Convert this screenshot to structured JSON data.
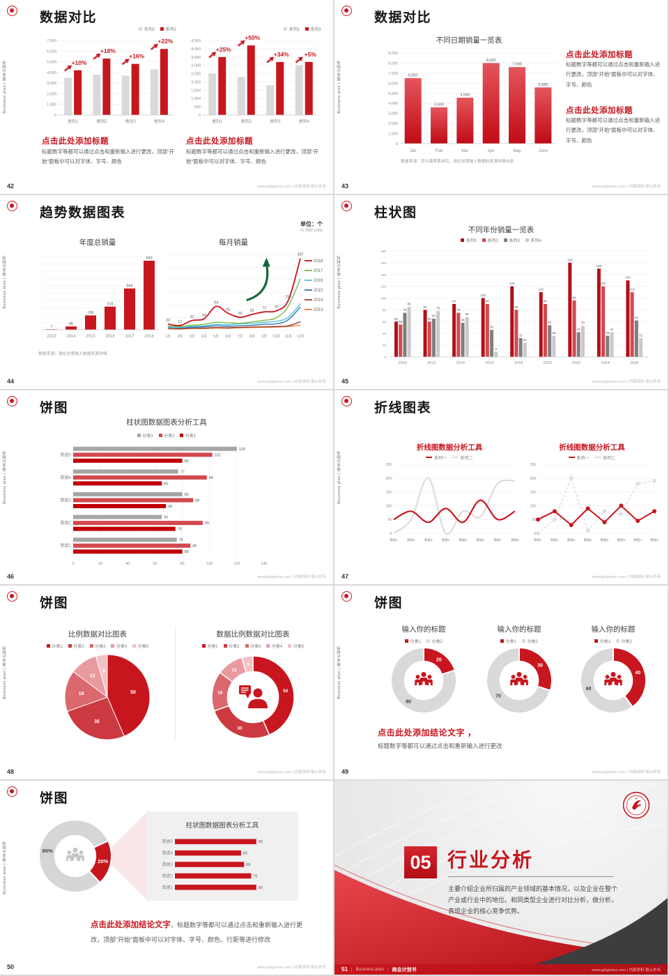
{
  "common": {
    "footer_right": "www.pptgenius.com | 内部资料 禁止外传",
    "sidebar_text": "Business plan | 商业计划书",
    "brand_red": "#C8161E"
  },
  "slides": {
    "s42": {
      "page": "42",
      "title": "数据对比",
      "left_block": {
        "heading": "点击此处添加标题",
        "body": "标题数字等都可以通过点击和重新输入进行更改，顶部“开始”面板中可以对字体、字号、颜色"
      },
      "right_block": {
        "heading": "点击此处添加标题",
        "body": "标题数字等都可以通过点击和重新输入进行更改，顶部“开始”面板中可以对字体、字号、颜色"
      }
    },
    "s43": {
      "page": "43",
      "title": "数据对比",
      "chart_title": "不同日期销量一览表",
      "note": "数据来源：尼尔森零售研究，请在这里输入数据的来源详情信息",
      "block1": {
        "heading": "点击此处添加标题",
        "body": "标题数字等都可以通过点击和重新输入进行更改，顶部“开始”面板中可以对字体、字号、颜色"
      },
      "block2": {
        "heading": "点击此处添加标题",
        "body": "标题数字等都可以通过点击和重新输入进行更改，顶部“开始”面板中可以对字体、字号、颜色"
      }
    },
    "s44": {
      "page": "44",
      "title": "趋势数据图表",
      "unit_cn": "单位：个",
      "unit_en": "in '000 units",
      "chart_title_left": "年度总销量",
      "chart_title_right": "每月销量",
      "note": "数据来源：请在这里输入数据来源详情"
    },
    "s45": {
      "page": "45",
      "title": "柱状图",
      "chart_title": "不同年份销量一览表"
    },
    "s46": {
      "page": "46",
      "title": "饼图",
      "chart_title": "柱状图数据图表分析工具"
    },
    "s47": {
      "page": "47",
      "title": "折线图表",
      "chart_title_left": "折线图数据分析工具",
      "chart_title_right": "折线图数据分析工具"
    },
    "s48": {
      "page": "48",
      "title": "饼图",
      "chart_title_left": "比例数据对比图表",
      "chart_title_right": "数据比例数据对比图表"
    },
    "s49": {
      "page": "49",
      "title": "饼图",
      "chart_titles": [
        "输入你的标题",
        "输入你的标题",
        "输入你的标题"
      ],
      "conclusion_heading": "点击此处添加结论文字 ，",
      "conclusion_body": "标题数字等都可以通过点击和重新输入进行更改"
    },
    "s50": {
      "page": "50",
      "title": "饼图",
      "panel_title": "柱状图数据图表分析工具",
      "conclusion_heading": "点击此处添加结论文字",
      "conclusion_body": "，标题数字等都可以通过点击和重新输入进行更改，顶部“开始”面板中可以对字体、字号、颜色、行距等进行修改"
    },
    "s51": {
      "page": "51",
      "number": "05",
      "title": "行业分析",
      "body": "主要介绍企业所归属的产业领域的基本情况，以及企业在整个产业或行业中的地位。和同类型企业进行对比分析，做分析，表现企业的核心竞争优势。",
      "footer_en": "Business plan",
      "footer_cn": "商业计划书"
    }
  },
  "chart_data": [
    {
      "id": "c42a",
      "type": "bar",
      "categories": [
        "类别1",
        "类别2",
        "类别3",
        "类别4"
      ],
      "series": [
        {
          "name": "系列1",
          "color": "#D9D9D9",
          "values": [
            3500,
            3800,
            3700,
            4300
          ]
        },
        {
          "name": "系列2",
          "color": "#C8161E",
          "values": [
            4200,
            5300,
            4800,
            6200
          ]
        }
      ],
      "ylim": [
        0,
        7000
      ],
      "ystep": 1000,
      "bw": 11,
      "bgap": 3,
      "ann": [
        "+10%",
        "+18%",
        "+16%",
        "+22%"
      ],
      "m": {
        "l": 26,
        "r": 4,
        "t": 12,
        "b": 13
      }
    },
    {
      "id": "c42b",
      "type": "bar",
      "categories": [
        "类别1",
        "类别2",
        "类别3",
        "类别4"
      ],
      "series": [
        {
          "name": "系列1",
          "color": "#D9D9D9",
          "values": [
            2500,
            2300,
            1800,
            3000
          ]
        },
        {
          "name": "系列2",
          "color": "#C8161E",
          "values": [
            3500,
            4200,
            3200,
            3200
          ]
        }
      ],
      "ylim": [
        0,
        4500
      ],
      "ystep": 500,
      "bw": 11,
      "bgap": 3,
      "ann": [
        "+25%",
        "+50%",
        "+34%",
        "+5%"
      ],
      "m": {
        "l": 26,
        "r": 4,
        "t": 12,
        "b": 13
      }
    },
    {
      "id": "c43",
      "type": "bar",
      "categories": [
        "Jan",
        "Feb",
        "Mar",
        "Apr",
        "May",
        "June"
      ],
      "series": [
        {
          "name": "销量",
          "gradient": [
            "#E4555C",
            "#C00B15"
          ],
          "values": [
            6500,
            3600,
            4560,
            8000,
            7600,
            5580
          ]
        }
      ],
      "ylim": [
        0,
        9000
      ],
      "ystep": 1000,
      "bw": 24,
      "vlabels": true,
      "m": {
        "l": 32,
        "r": 6,
        "t": 8,
        "b": 14
      }
    },
    {
      "id": "c44a",
      "type": "bar",
      "categories": [
        "2013",
        "2014",
        "2015",
        "2016",
        "2017",
        "2018"
      ],
      "series": [
        {
          "name": "年度总销量",
          "color": "#C8161E",
          "values": [
            7,
            45,
            196,
            316,
            564,
            943
          ]
        }
      ],
      "ylim": [
        0,
        1000
      ],
      "ystep": 100,
      "ylabels": false,
      "vlabels": true,
      "bw": 16,
      "m": {
        "l": 8,
        "r": 4,
        "t": 10,
        "b": 13
      }
    },
    {
      "id": "c44b",
      "type": "line",
      "x": [
        "1月",
        "2月",
        "3月",
        "4月",
        "5月",
        "6月",
        "7月",
        "8月",
        "9月",
        "10月",
        "11月",
        "12月"
      ],
      "series": [
        {
          "name": "2018",
          "color": "#C8161E",
          "w": 1.8,
          "labels": true,
          "values": [
            23,
            17,
            37,
            44,
            94,
            66,
            50,
            62,
            72,
            76,
            118,
            287
          ]
        },
        {
          "name": "2017",
          "color": "#7FBA42",
          "w": 1.4,
          "values": [
            15,
            13,
            18,
            22,
            30,
            28,
            26,
            32,
            38,
            48,
            95,
            205
          ]
        },
        {
          "name": "2016",
          "color": "#4EC3E0",
          "w": 1.4,
          "values": [
            12,
            10,
            14,
            16,
            22,
            20,
            24,
            26,
            30,
            34,
            50,
            105
          ]
        },
        {
          "name": "2015",
          "color": "#2E75B6",
          "w": 1.4,
          "values": [
            10,
            8,
            10,
            12,
            16,
            14,
            16,
            18,
            22,
            24,
            40,
            92
          ]
        },
        {
          "name": "2014",
          "color": "#9E3B2D",
          "w": 1.4,
          "values": [
            5,
            4,
            6,
            7,
            9,
            8,
            10,
            11,
            12,
            13,
            16,
            32
          ]
        },
        {
          "name": "2013",
          "color": "#ED7D31",
          "w": 1.4,
          "values": [
            4,
            3,
            5,
            5,
            7,
            6,
            8,
            9,
            10,
            11,
            13,
            18
          ]
        }
      ],
      "ylim": [
        0,
        300
      ],
      "ystep": 50,
      "ylabels": false,
      "smooth": true,
      "legend_right": true,
      "arrow": true,
      "m": {
        "l": 6,
        "r": 36,
        "t": 12,
        "b": 13
      },
      "xfs": 5
    },
    {
      "id": "c45",
      "type": "bar",
      "categories": [
        "2010",
        "2012",
        "2014",
        "2016",
        "2018",
        "2020",
        "2022",
        "2024",
        "2026"
      ],
      "series": [
        {
          "name": "系列1",
          "color": "#B40F17",
          "values": [
            60,
            80,
            90,
            100,
            120,
            110,
            160,
            150,
            130
          ]
        },
        {
          "name": "系列2",
          "color": "#D2494F",
          "values": [
            55,
            60,
            75,
            90,
            80,
            90,
            96,
            120,
            110
          ]
        },
        {
          "name": "系列3",
          "color": "#7F7F7F",
          "values": [
            75,
            65,
            58,
            46,
            32,
            54,
            42,
            36,
            62
          ]
        },
        {
          "name": "系列4",
          "color": "#C9C9C9",
          "values": [
            85,
            78,
            68,
            9,
            24,
            36,
            53,
            42,
            32
          ]
        }
      ],
      "ylim": [
        0,
        180
      ],
      "ystep": 20,
      "vlabels": true,
      "bw": 5,
      "bgap": 1.2,
      "fs": 4.5,
      "fs2": 5.5,
      "m": {
        "l": 22,
        "r": 4,
        "t": 8,
        "b": 12
      }
    },
    {
      "id": "c46",
      "type": "hbar",
      "categories": [
        "数据5",
        "数据4",
        "数据3",
        "数据2",
        "数据1"
      ],
      "series": [
        {
          "name": "分类3",
          "color": "#A6A6A6",
          "values": [
            120,
            77,
            80,
            65,
            76
          ]
        },
        {
          "name": "分类2",
          "color": "#D2494F",
          "values": [
            102,
            98,
            88,
            95,
            86
          ]
        },
        {
          "name": "分类1",
          "color": "#C00000",
          "values": [
            80,
            65,
            68,
            75,
            80
          ]
        }
      ],
      "xlim": [
        0,
        140
      ],
      "xstep": 20,
      "vlabels": true,
      "bh": 6,
      "bgap": 2.5,
      "m": {
        "l": 30,
        "r": 26,
        "t": 4,
        "b": 13
      }
    },
    {
      "id": "c47a",
      "type": "line",
      "x": [
        "数据1",
        "数据2",
        "数据3",
        "数据4",
        "数据5",
        "数据6",
        "数据7",
        "数据8"
      ],
      "series": [
        {
          "name": "系列一",
          "color": "#C8161E",
          "w": 2.2,
          "values": [
            50,
            80,
            40,
            90,
            40,
            120,
            50,
            80
          ]
        },
        {
          "name": "系列二",
          "color": "#DCDCDC",
          "w": 2.2,
          "values": [
            0,
            50,
            200,
            0,
            80,
            60,
            180,
            190
          ]
        }
      ],
      "ylim": [
        0,
        250
      ],
      "ystep": 50,
      "smooth": true,
      "m": {
        "l": 20,
        "r": 6,
        "t": 6,
        "b": 13
      },
      "xfs": 4.5,
      "legend_items": [
        {
          "label": "系列一",
          "color": "#C8161E",
          "shape": "line"
        },
        {
          "label": "系列二",
          "color": "#DCDCDC",
          "shape": "line"
        }
      ]
    },
    {
      "id": "c47b",
      "type": "line",
      "x": [
        "数据1",
        "数据2",
        "数据3",
        "数据4",
        "数据5",
        "数据6",
        "数据7",
        "数据8"
      ],
      "series": [
        {
          "name": "系列一",
          "color": "#C8161E",
          "w": 2,
          "markers": true,
          "values": [
            50,
            80,
            30,
            90,
            40,
            100,
            45,
            80
          ]
        },
        {
          "name": "系列二",
          "color": "#D9D9D9",
          "w": 1.5,
          "dash": "3 3",
          "markers": true,
          "mcolor": "#E0E0E0",
          "values": [
            0,
            50,
            200,
            10,
            80,
            70,
            180,
            190
          ]
        }
      ],
      "ylim": [
        0,
        250
      ],
      "ystep": 50,
      "m": {
        "l": 20,
        "r": 8,
        "t": 6,
        "b": 13
      },
      "xfs": 4.5,
      "legend_items": [
        {
          "label": "系列一",
          "color": "#C8161E",
          "shape": "line"
        },
        {
          "label": "系列二",
          "color": "#DCDCDC",
          "shape": "line"
        }
      ]
    },
    {
      "id": "c48a",
      "type": "pie",
      "values": [
        50,
        30,
        18,
        12,
        5
      ],
      "labels": [
        "50",
        "30",
        "18",
        "12",
        "5"
      ],
      "colors": [
        "#C8161E",
        "#CC3940",
        "#DA686D",
        "#E89A9E",
        "#F1C2C4"
      ],
      "lfs": 7,
      "stroke": 1,
      "legend_items": [
        {
          "label": "分类1",
          "color": "#C8161E"
        },
        {
          "label": "分类2",
          "color": "#CC3940"
        },
        {
          "label": "分类3",
          "color": "#DA686D"
        },
        {
          "label": "分类4",
          "color": "#E89A9E"
        },
        {
          "label": "分类5",
          "color": "#F1C2C4"
        }
      ]
    },
    {
      "id": "c48b",
      "type": "pie",
      "values": [
        50,
        30,
        18,
        12,
        5
      ],
      "labels": [
        "50",
        "30",
        "18",
        "12",
        "5"
      ],
      "colors": [
        "#C8161E",
        "#CC3940",
        "#DA686D",
        "#E89A9E",
        "#F1C2C4"
      ],
      "inner": 0.62,
      "icon": "person-chat",
      "lfs": 6.5,
      "stroke": 1.5,
      "legend_items": [
        {
          "label": "分类1",
          "color": "#C8161E"
        },
        {
          "label": "分类2",
          "color": "#CC3940"
        },
        {
          "label": "分类3",
          "color": "#DA686D"
        },
        {
          "label": "分类4",
          "color": "#E89A9E"
        },
        {
          "label": "分类5",
          "color": "#F1C2C4"
        }
      ]
    },
    {
      "id": "c49a",
      "type": "pie",
      "values": [
        20,
        80
      ],
      "labels": [
        "20",
        "80"
      ],
      "label_colors": [
        "#ffffff",
        "#404040"
      ],
      "colors": [
        "#C8161E",
        "#D9D9D9"
      ],
      "inner": 0.58,
      "icon": "people",
      "stroke": 2,
      "lfs": 7,
      "legend_items": [
        {
          "label": "分类1",
          "color": "#C8161E"
        },
        {
          "label": "分类2",
          "color": "#D9D9D9"
        }
      ]
    },
    {
      "id": "c49b",
      "type": "pie",
      "values": [
        30,
        70
      ],
      "labels": [
        "30",
        "70"
      ],
      "label_colors": [
        "#ffffff",
        "#404040"
      ],
      "colors": [
        "#C8161E",
        "#D9D9D9"
      ],
      "inner": 0.58,
      "icon": "people",
      "stroke": 2,
      "lfs": 7,
      "legend_items": [
        {
          "label": "分类1",
          "color": "#C8161E"
        },
        {
          "label": "分类2",
          "color": "#D9D9D9"
        }
      ]
    },
    {
      "id": "c49c",
      "type": "pie",
      "values": [
        40,
        60
      ],
      "labels": [
        "40",
        "60"
      ],
      "label_colors": [
        "#ffffff",
        "#404040"
      ],
      "colors": [
        "#C8161E",
        "#D9D9D9"
      ],
      "inner": 0.58,
      "icon": "people",
      "stroke": 2,
      "lfs": 7,
      "legend_items": [
        {
          "label": "分类1",
          "color": "#C8161E"
        },
        {
          "label": "分类2",
          "color": "#D9D9D9"
        }
      ]
    },
    {
      "id": "c50d",
      "type": "pie",
      "values": [
        20,
        80
      ],
      "labels": [
        "20%",
        "80%"
      ],
      "label_colors": [
        "#ffffff",
        "#404040"
      ],
      "colors": [
        "#C8161E",
        "#D6D6D6"
      ],
      "inner": 0.56,
      "start": 65,
      "icon": "people",
      "icon_color": "#C6C6C6",
      "stroke": 2,
      "lfs": 7.5
    },
    {
      "id": "c50b",
      "type": "hbar",
      "categories": [
        "数据5",
        "数据4",
        "数据3",
        "数据2",
        "数据1"
      ],
      "series": [
        {
          "name": "数据",
          "color": "#C8161E",
          "values": [
            80,
            65,
            68,
            75,
            80
          ]
        }
      ],
      "xlim": [
        0,
        100
      ],
      "vlabels": true,
      "bh": 7.5,
      "m": {
        "l": 26,
        "r": 18,
        "t": 3,
        "b": 3
      }
    }
  ]
}
